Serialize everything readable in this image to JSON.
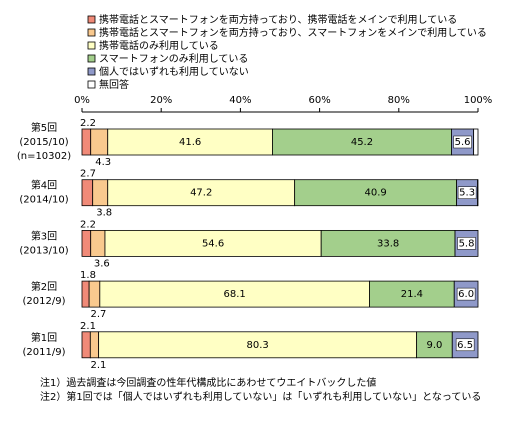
{
  "chart_data": {
    "type": "stacked-bar-horizontal",
    "categories": [
      [
        "第5回",
        "(2015/10)",
        "(n=10302)"
      ],
      [
        "第4回",
        "(2014/10)"
      ],
      [
        "第3回",
        "(2013/10)"
      ],
      [
        "第2回",
        "(2012/9)"
      ],
      [
        "第1回",
        "(2011/9)"
      ]
    ],
    "series": [
      {
        "name": "携帯電話とスマートフォンを両方持っており、携帯電話をメインで利用している",
        "color": "#f08a78",
        "values": [
          2.2,
          2.7,
          2.2,
          1.8,
          2.1
        ]
      },
      {
        "name": "携帯電話とスマートフォンを両方持っており、スマートフォンをメインで利用している",
        "color": "#f9c98e",
        "values": [
          4.3,
          3.8,
          3.6,
          2.7,
          2.1
        ]
      },
      {
        "name": "携帯電話のみ利用している",
        "color": "#ffffc4",
        "values": [
          41.6,
          47.2,
          54.6,
          68.1,
          80.3
        ]
      },
      {
        "name": "スマートフォンのみ利用している",
        "color": "#a3cf8c",
        "values": [
          45.2,
          40.9,
          33.8,
          21.4,
          9.0
        ],
        "value_labels": [
          "45.2",
          "40.9",
          "33.8",
          "21.4",
          "9.0"
        ]
      },
      {
        "name": "個人ではいずれも利用していない",
        "color": "#8f99c9",
        "values": [
          5.6,
          5.3,
          5.8,
          6.0,
          6.5
        ],
        "value_labels": [
          "5.6",
          "5.3",
          "5.8",
          "6.0",
          "6.5"
        ]
      },
      {
        "name": "無回答",
        "color": "#ffffff",
        "values": [
          1.1,
          0.1,
          0,
          0,
          0
        ]
      }
    ],
    "xlim": [
      0,
      100
    ],
    "xticks": [
      {
        "value": 0,
        "label": "0%"
      },
      {
        "value": 20,
        "label": "20%"
      },
      {
        "value": 40,
        "label": "40%"
      },
      {
        "value": 60,
        "label": "60%"
      },
      {
        "value": 80,
        "label": "80%"
      },
      {
        "value": 100,
        "label": "100%"
      }
    ],
    "notes": [
      "注1）過去調査は今回調査の性年代構成比にあわせてウエイトバックした値",
      "注2）第1回では「個人ではいずれも利用していない」は「いずれも利用していない」となっている"
    ]
  }
}
